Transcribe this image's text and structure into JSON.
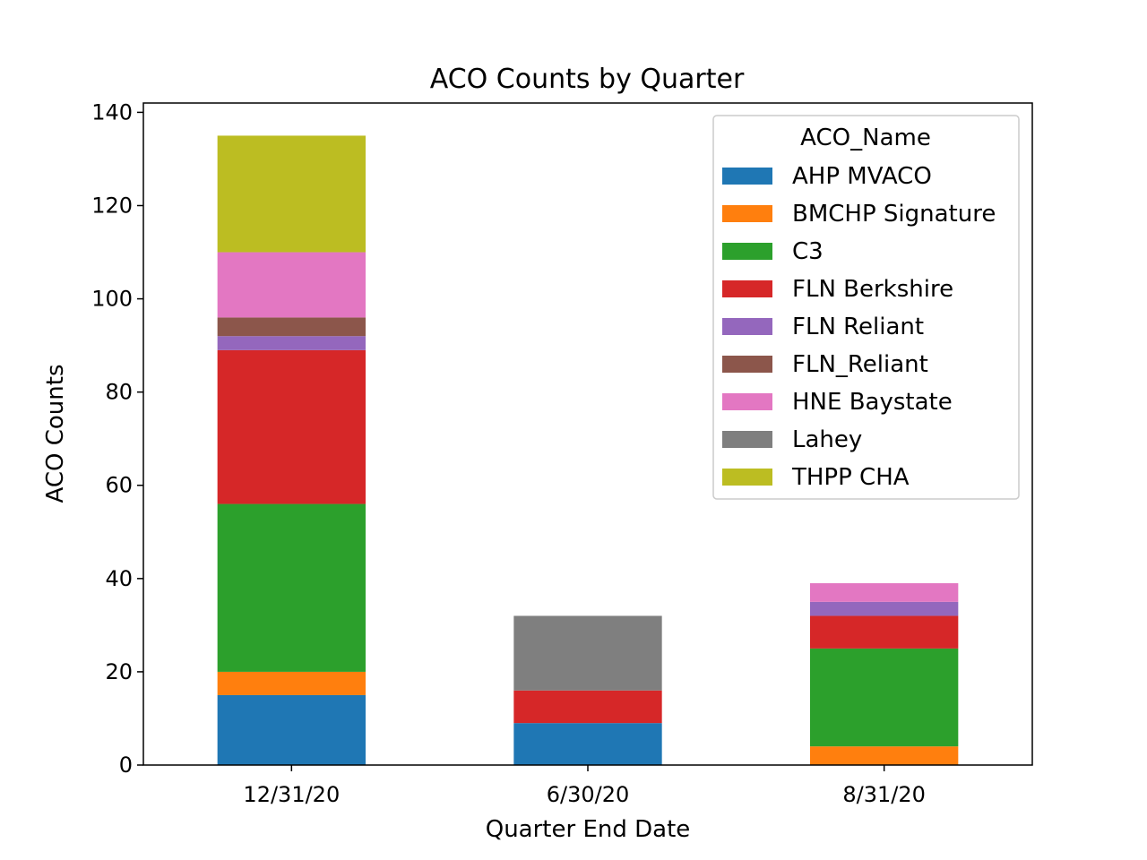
{
  "chart_data": {
    "type": "bar",
    "stacked": true,
    "title": "ACO Counts by Quarter",
    "xlabel": "Quarter End Date",
    "ylabel": "ACO Counts",
    "ylim": [
      0,
      142
    ],
    "yticks": [
      0,
      20,
      40,
      60,
      80,
      100,
      120,
      140
    ],
    "categories": [
      "12/31/20",
      "6/30/20",
      "8/31/20"
    ],
    "grid": false,
    "legend": {
      "title": "ACO_Name",
      "placement": "top-right"
    },
    "series": [
      {
        "name": "AHP MVACO",
        "color": "#1f77b4",
        "values": [
          15,
          9,
          0
        ]
      },
      {
        "name": "BMCHP Signature",
        "color": "#ff7f0e",
        "values": [
          5,
          0,
          4
        ]
      },
      {
        "name": "C3",
        "color": "#2ca02c",
        "values": [
          36,
          0,
          21
        ]
      },
      {
        "name": "FLN Berkshire",
        "color": "#d62728",
        "values": [
          33,
          7,
          7
        ]
      },
      {
        "name": "FLN Reliant",
        "color": "#9467bd",
        "values": [
          3,
          0,
          3
        ]
      },
      {
        "name": "FLN_Reliant",
        "color": "#8c564b",
        "values": [
          4,
          0,
          0
        ]
      },
      {
        "name": "HNE Baystate",
        "color": "#e377c2",
        "values": [
          14,
          0,
          4
        ]
      },
      {
        "name": "Lahey",
        "color": "#7f7f7f",
        "values": [
          0,
          16,
          0
        ]
      },
      {
        "name": "THPP CHA",
        "color": "#bcbd22",
        "values": [
          25,
          0,
          0
        ]
      }
    ]
  }
}
